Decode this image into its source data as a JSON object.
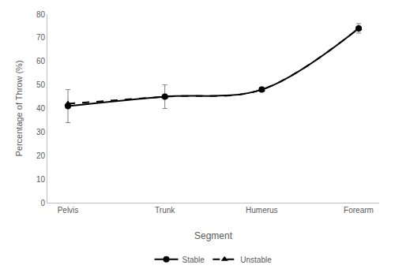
{
  "chart_data": {
    "type": "line",
    "x_label": "Segment",
    "y_label": "Percentage of Throw (%)",
    "categories": [
      "Pelvis",
      "Trunk",
      "Humerus",
      "Forearm"
    ],
    "series": [
      {
        "name": "Stable",
        "color": "#000000",
        "marker": "circle",
        "line_style": "solid",
        "values": [
          41,
          45,
          48,
          74
        ],
        "errors": [
          7,
          5,
          1,
          2
        ]
      },
      {
        "name": "Unstable",
        "color": "#000000",
        "marker": "triangle-up",
        "line_style": "dashed",
        "values": [
          42,
          45,
          48,
          74
        ]
      }
    ],
    "ylim": [
      0,
      80
    ],
    "yticks": [
      0,
      10,
      20,
      30,
      40,
      50,
      60,
      70,
      80
    ],
    "grid": false,
    "legend": "bottom"
  }
}
